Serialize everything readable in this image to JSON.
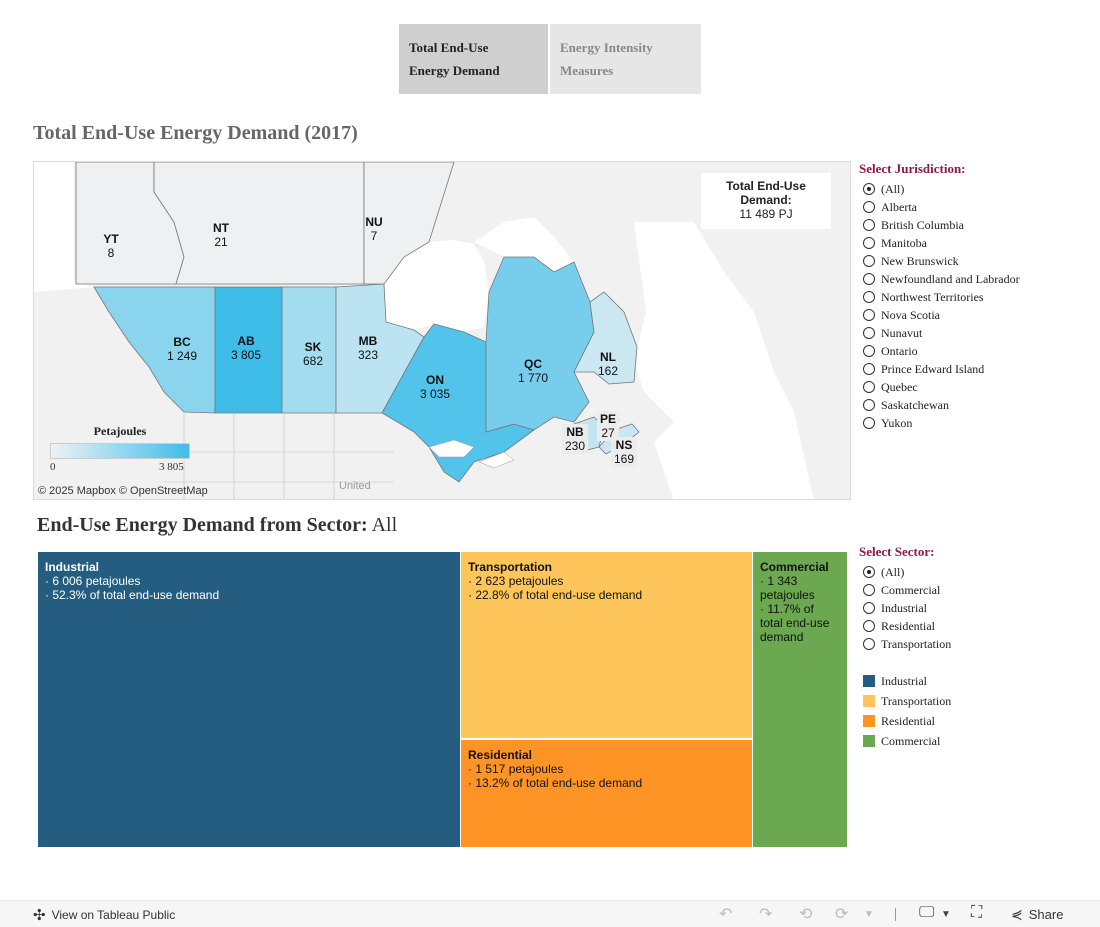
{
  "tabs": [
    {
      "line1": "Total  End-Use",
      "line2": "Energy  Demand",
      "active": true
    },
    {
      "line1": "Energy  Intensity",
      "line2": "Measures",
      "active": false
    }
  ],
  "map_section": {
    "title": "Total  End-Use  Energy  Demand  (2017)",
    "total_box": {
      "line1": "Total End-Use",
      "line2": "Demand:",
      "value": "11 489 PJ"
    },
    "legend": {
      "title": "Petajoules",
      "min": "0",
      "max": "3  805"
    },
    "attribution": "© 2025 Mapbox  © OpenStreetMap",
    "us_label": "United",
    "provinces": [
      {
        "code": "YT",
        "value": "8",
        "num": 8
      },
      {
        "code": "NT",
        "value": "21",
        "num": 21
      },
      {
        "code": "NU",
        "value": "7",
        "num": 7
      },
      {
        "code": "BC",
        "value": "1 249",
        "num": 1249
      },
      {
        "code": "AB",
        "value": "3 805",
        "num": 3805
      },
      {
        "code": "SK",
        "value": "682",
        "num": 682
      },
      {
        "code": "MB",
        "value": "323",
        "num": 323
      },
      {
        "code": "ON",
        "value": "3 035",
        "num": 3035
      },
      {
        "code": "QC",
        "value": "1 770",
        "num": 1770
      },
      {
        "code": "NL",
        "value": "162",
        "num": 162
      },
      {
        "code": "NB",
        "value": "230",
        "num": 230
      },
      {
        "code": "PE",
        "value": "27",
        "num": 27
      },
      {
        "code": "NS",
        "value": "169",
        "num": 169
      }
    ]
  },
  "jurisdiction_filter": {
    "title": "Select  Jurisdiction:",
    "options": [
      "(All)",
      "Alberta",
      "British Columbia",
      "Manitoba",
      "New Brunswick",
      "Newfoundland and Labrador",
      "Northwest Territories",
      "Nova Scotia",
      "Nunavut",
      "Ontario",
      "Prince Edward Island",
      "Quebec",
      "Saskatchewan",
      "Yukon"
    ],
    "selected": "(All)"
  },
  "sector_section": {
    "title_prefix": "End-Use  Energy  Demand  from  Sector:",
    "title_value": "All",
    "tiles": [
      {
        "name": "Industrial",
        "line1": "· 6 006 petajoules",
        "line2": "· 52.3% of total end-use demand"
      },
      {
        "name": "Transportation",
        "line1": "· 2 623 petajoules",
        "line2": "· 22.8% of total end-use demand"
      },
      {
        "name": "Residential",
        "line1": "· 1 517 petajoules",
        "line2": "· 13.2% of total end-use demand"
      },
      {
        "name": "Commercial",
        "line1": "· 1 343",
        "line2": "petajoules",
        "line3": "· 11.7% of",
        "line4": "total end-use",
        "line5": "demand"
      }
    ]
  },
  "sector_filter": {
    "title": "Select  Sector:",
    "options": [
      "(All)",
      "Commercial",
      "Industrial",
      "Residential",
      "Transportation"
    ],
    "selected": "(All)"
  },
  "sector_legend": [
    {
      "label": "Industrial",
      "color": "#255d80"
    },
    {
      "label": "Transportation",
      "color": "#fdc55a"
    },
    {
      "label": "Residential",
      "color": "#fe9426"
    },
    {
      "label": "Commercial",
      "color": "#6ba84f"
    }
  ],
  "bottom_bar": {
    "view_label": "View on Tableau Public",
    "share_label": "Share"
  }
}
